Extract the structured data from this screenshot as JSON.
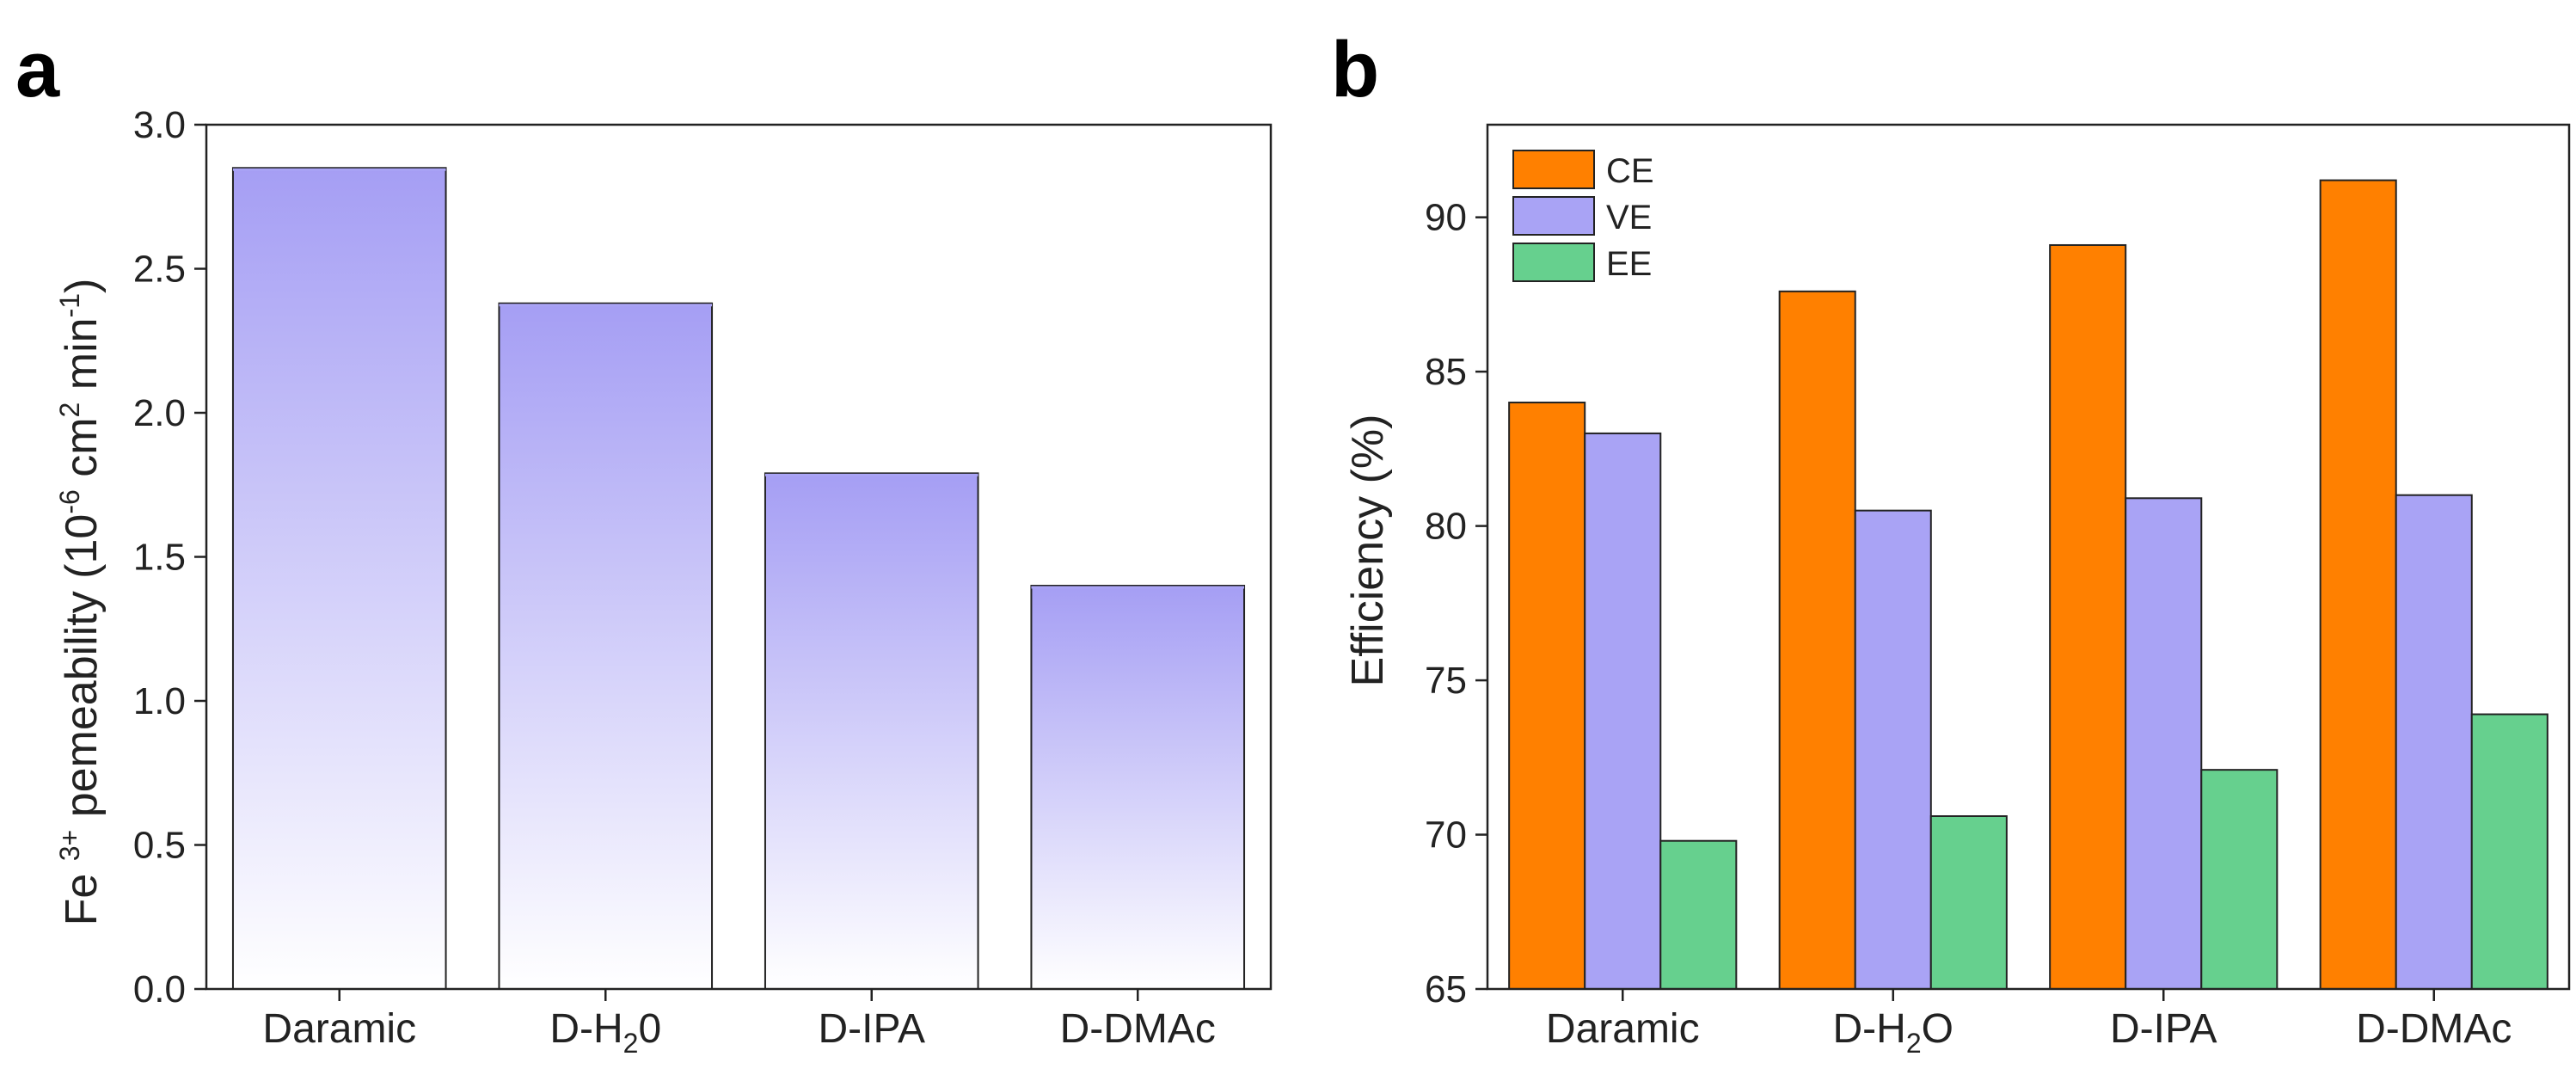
{
  "panels": {
    "a": {
      "letter": "a"
    },
    "b": {
      "letter": "b"
    }
  },
  "chart_data": [
    {
      "type": "bar",
      "title": "",
      "categories": [
        "Daramic",
        "D-H₂0",
        "D-IPA",
        "D-DMAc"
      ],
      "category_parts": [
        {
          "base": "Daramic",
          "sub": "",
          "tail": ""
        },
        {
          "base": "D-H",
          "sub": "2",
          "tail": "0"
        },
        {
          "base": "D-IPA",
          "sub": "",
          "tail": ""
        },
        {
          "base": "D-DMAc",
          "sub": "",
          "tail": ""
        }
      ],
      "values": [
        2.85,
        2.38,
        1.79,
        1.4
      ],
      "ylabel": "Fe 3+ pemeability (10-6 cm2 min-1)",
      "ylabel_parts": {
        "p1": "Fe ",
        "p2": "3+",
        "p3": " pemeability (10",
        "p4": "-6",
        "p5": " cm",
        "p6": "2",
        "p7": " min",
        "p8": "-1",
        "p9": ")"
      },
      "ylim": [
        0,
        3.0
      ],
      "yticks": [
        0.0,
        0.5,
        1.0,
        1.5,
        2.0,
        2.5,
        3.0
      ],
      "ytick_labels": [
        "0.0",
        "0.5",
        "1.0",
        "1.5",
        "2.0",
        "2.5",
        "3.0"
      ],
      "bar_color": "#a9a3f5",
      "grid": false
    },
    {
      "type": "bar",
      "title": "",
      "categories": [
        "Daramic",
        "D-H₂O",
        "D-IPA",
        "D-DMAc"
      ],
      "category_parts": [
        {
          "base": "Daramic",
          "sub": "",
          "tail": ""
        },
        {
          "base": "D-H",
          "sub": "2",
          "tail": "O"
        },
        {
          "base": "D-IPA",
          "sub": "",
          "tail": ""
        },
        {
          "base": "D-DMAc",
          "sub": "",
          "tail": ""
        }
      ],
      "series": [
        {
          "name": "CE",
          "color": "#ff8000",
          "values": [
            84.0,
            87.6,
            89.1,
            91.2
          ]
        },
        {
          "name": "VE",
          "color": "#a9a3f5",
          "values": [
            83.0,
            80.5,
            80.9,
            81.0
          ]
        },
        {
          "name": "EE",
          "color": "#66d08e",
          "values": [
            69.8,
            70.6,
            72.1,
            73.9
          ]
        }
      ],
      "ylabel": "Efficiency (%)",
      "ylim": [
        65,
        93
      ],
      "yticks": [
        65,
        70,
        75,
        80,
        85,
        90
      ],
      "ytick_labels": [
        "65",
        "70",
        "75",
        "80",
        "85",
        "90"
      ],
      "legend_position": "top-left",
      "grid": false
    }
  ]
}
